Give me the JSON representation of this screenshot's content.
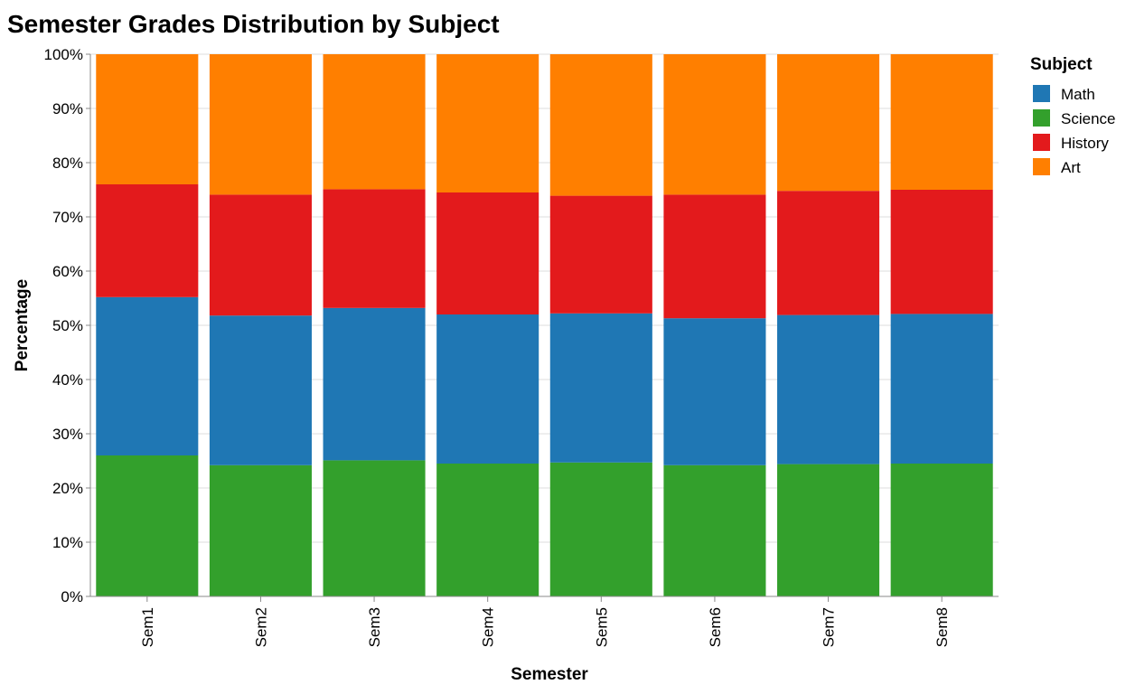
{
  "chart_data": {
    "type": "bar",
    "stacked": true,
    "normalized": true,
    "title": "Semester Grades Distribution by Subject",
    "xlabel": "Semester",
    "ylabel": "Percentage",
    "categories": [
      "Sem1",
      "Sem2",
      "Sem3",
      "Sem4",
      "Sem5",
      "Sem6",
      "Sem7",
      "Sem8"
    ],
    "y_ticks": [
      "0%",
      "10%",
      "20%",
      "30%",
      "40%",
      "50%",
      "60%",
      "70%",
      "80%",
      "90%",
      "100%"
    ],
    "ylim": [
      0,
      100
    ],
    "grid": true,
    "legend": {
      "title": "Subject",
      "placement": "right"
    },
    "stack_order": [
      "Science",
      "Math",
      "History",
      "Art"
    ],
    "series": [
      {
        "name": "Math",
        "color": "#1f77b4",
        "values": [
          29.2,
          27.6,
          28.1,
          27.5,
          27.5,
          27.1,
          27.5,
          27.6
        ]
      },
      {
        "name": "Science",
        "color": "#33a02c",
        "values": [
          26.0,
          24.2,
          25.1,
          24.5,
          24.7,
          24.2,
          24.4,
          24.5
        ]
      },
      {
        "name": "History",
        "color": "#e31a1c",
        "values": [
          20.8,
          22.3,
          21.9,
          22.5,
          21.7,
          22.8,
          22.9,
          22.9
        ]
      },
      {
        "name": "Art",
        "color": "#ff7f00",
        "values": [
          24.0,
          25.9,
          24.9,
          25.5,
          26.1,
          25.9,
          25.2,
          25.0
        ]
      }
    ]
  }
}
